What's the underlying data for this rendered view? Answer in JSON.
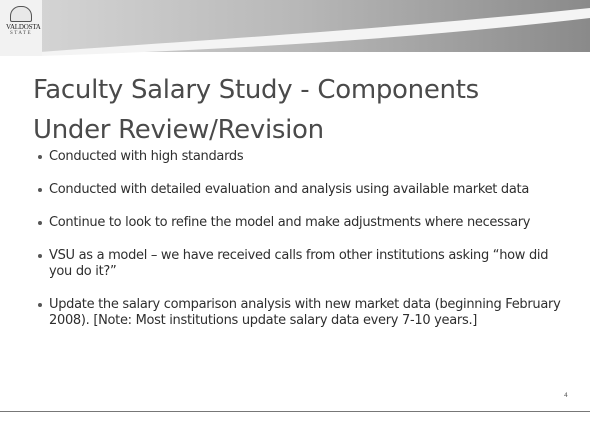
{
  "logo": {
    "name": "VALDOSTA",
    "sub": "STATE"
  },
  "title": "Faculty Salary Study - Components Under Review/Revision",
  "bullets": [
    "Conducted with high standards",
    "Conducted with detailed evaluation and analysis using available market data",
    "Continue to look to refine the model and make adjustments where necessary",
    "VSU as a model – we have received calls from other institutions asking “how did you do it?”",
    "Update the salary comparison analysis with new market data (beginning February 2008). [Note: Most institutions update salary data every 7-10 years.]"
  ],
  "page_number": "4"
}
